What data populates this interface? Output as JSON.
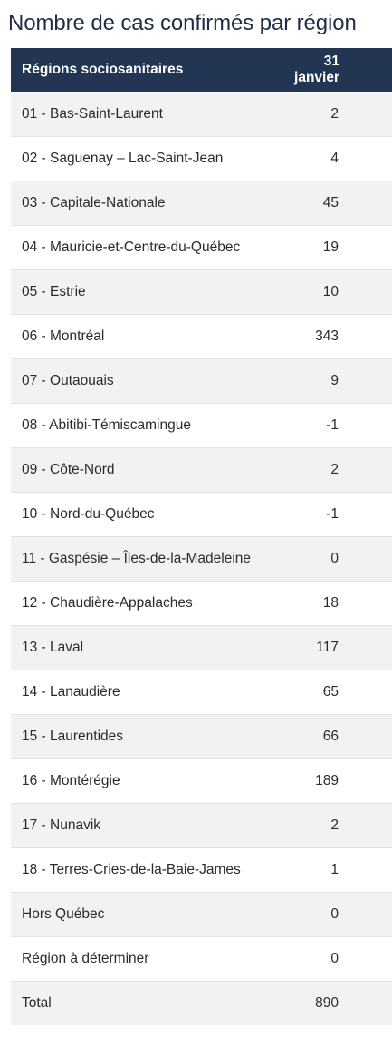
{
  "title": "Nombre de cas confirmés par région",
  "table": {
    "headers": [
      "Régions sociosanitaires",
      "31 janvier"
    ],
    "rows": [
      {
        "region": "01 - Bas-Saint-Laurent",
        "value": "2"
      },
      {
        "region": "02 - Saguenay – Lac-Saint-Jean",
        "value": "4"
      },
      {
        "region": "03 - Capitale-Nationale",
        "value": "45"
      },
      {
        "region": "04 - Mauricie-et-Centre-du-Québec",
        "value": "19"
      },
      {
        "region": "05 - Estrie",
        "value": "10"
      },
      {
        "region": "06 - Montréal",
        "value": "343"
      },
      {
        "region": "07 - Outaouais",
        "value": "9"
      },
      {
        "region": "08 - Abitibi-Témiscamingue",
        "value": "-1"
      },
      {
        "region": "09 - Côte-Nord",
        "value": "2"
      },
      {
        "region": "10 - Nord-du-Québec",
        "value": "-1"
      },
      {
        "region": "11 - Gaspésie – Îles-de-la-Madeleine",
        "value": "0"
      },
      {
        "region": "12 - Chaudière-Appalaches",
        "value": "18"
      },
      {
        "region": "13 - Laval",
        "value": "117"
      },
      {
        "region": "14 - Lanaudière",
        "value": "65"
      },
      {
        "region": "15 - Laurentides",
        "value": "66"
      },
      {
        "region": "16 - Montérégie",
        "value": "189"
      },
      {
        "region": "17 - Nunavik",
        "value": "2"
      },
      {
        "region": "18 - Terres-Cries-de-la-Baie-James",
        "value": "1"
      },
      {
        "region": "Hors Québec",
        "value": "0"
      },
      {
        "region": "Région à déterminer",
        "value": "0"
      },
      {
        "region": "Total",
        "value": "890"
      }
    ]
  },
  "colors": {
    "header_bg": "#223654",
    "header_text": "#ffffff",
    "title_text": "#1f2d47",
    "row_alt_bg": "#f2f2f2"
  }
}
